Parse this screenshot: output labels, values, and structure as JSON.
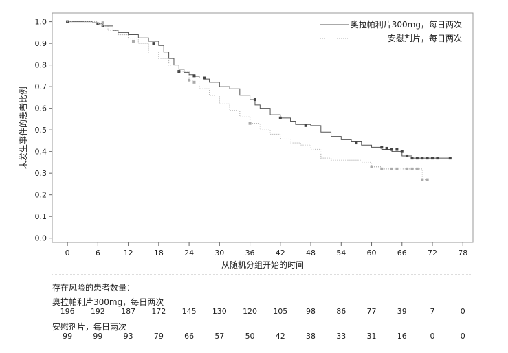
{
  "chart_data": {
    "type": "line",
    "title": "",
    "xlabel": "从随机分组开始的时间",
    "ylabel": "未发生事件的患者比例",
    "xlim": [
      -3,
      80
    ],
    "ylim": [
      -0.02,
      1.04
    ],
    "x_ticks": [
      0,
      6,
      12,
      18,
      24,
      30,
      36,
      42,
      48,
      54,
      60,
      66,
      72,
      78
    ],
    "y_ticks": [
      "0.0",
      "0.1",
      "0.2",
      "0.3",
      "0.4",
      "0.5",
      "0.6",
      "0.7",
      "0.8",
      "0.9",
      "1.0"
    ],
    "legend_position": "top-right",
    "series": [
      {
        "name": "奥拉帕利片300mg，每日两次",
        "color": "#555555",
        "style": "solid",
        "x": [
          0,
          5,
          6,
          7,
          9,
          10,
          12,
          14,
          16,
          18,
          19,
          20,
          21,
          22,
          23,
          24,
          25,
          26,
          27,
          28,
          30,
          32,
          34,
          36,
          37,
          38,
          40,
          42,
          44,
          45,
          46,
          48,
          50,
          52,
          54,
          56,
          58,
          60,
          62,
          64,
          66,
          68,
          70,
          72,
          74,
          75.5
        ],
        "y": [
          1.0,
          0.995,
          0.99,
          0.98,
          0.96,
          0.95,
          0.94,
          0.925,
          0.91,
          0.89,
          0.86,
          0.83,
          0.8,
          0.78,
          0.765,
          0.755,
          0.748,
          0.74,
          0.735,
          0.72,
          0.7,
          0.69,
          0.66,
          0.64,
          0.615,
          0.6,
          0.57,
          0.555,
          0.54,
          0.525,
          0.525,
          0.52,
          0.49,
          0.47,
          0.455,
          0.445,
          0.43,
          0.42,
          0.41,
          0.4,
          0.38,
          0.37,
          0.37,
          0.37,
          0.37,
          0.37
        ],
        "censored": [
          [
            0,
            1.0
          ],
          [
            6,
            0.99
          ],
          [
            7,
            0.98
          ],
          [
            17,
            0.9
          ],
          [
            22,
            0.77
          ],
          [
            25,
            0.75
          ],
          [
            27,
            0.74
          ],
          [
            37,
            0.64
          ],
          [
            42,
            0.555
          ],
          [
            47,
            0.52
          ],
          [
            57,
            0.44
          ],
          [
            62,
            0.42
          ],
          [
            63,
            0.415
          ],
          [
            64,
            0.41
          ],
          [
            65,
            0.41
          ],
          [
            66,
            0.4
          ],
          [
            67,
            0.38
          ],
          [
            68,
            0.37
          ],
          [
            69,
            0.37
          ],
          [
            70,
            0.37
          ],
          [
            71,
            0.37
          ],
          [
            72,
            0.37
          ],
          [
            73,
            0.37
          ],
          [
            75.5,
            0.37
          ]
        ]
      },
      {
        "name": "安慰剂片，每日两次",
        "color": "#b0b0b0",
        "style": "dotted",
        "x": [
          0,
          6,
          7,
          8,
          10,
          12,
          14,
          16,
          18,
          20,
          22,
          24,
          26,
          28,
          30,
          32,
          34,
          36,
          38,
          40,
          42,
          44,
          46,
          48,
          50,
          52,
          54,
          56,
          58,
          60,
          62,
          64,
          66,
          68,
          70,
          71
        ],
        "y": [
          1.0,
          0.99,
          0.98,
          0.96,
          0.94,
          0.92,
          0.9,
          0.86,
          0.83,
          0.8,
          0.77,
          0.73,
          0.69,
          0.66,
          0.62,
          0.59,
          0.56,
          0.53,
          0.5,
          0.48,
          0.46,
          0.44,
          0.43,
          0.41,
          0.37,
          0.36,
          0.36,
          0.36,
          0.35,
          0.33,
          0.32,
          0.32,
          0.32,
          0.32,
          0.27,
          0.27
        ],
        "censored": [
          [
            7,
            0.995
          ],
          [
            13,
            0.91
          ],
          [
            24,
            0.73
          ],
          [
            25,
            0.72
          ],
          [
            36,
            0.53
          ],
          [
            60,
            0.33
          ],
          [
            62,
            0.32
          ],
          [
            64,
            0.32
          ],
          [
            65,
            0.32
          ],
          [
            67,
            0.32
          ],
          [
            68,
            0.32
          ],
          [
            69,
            0.32
          ],
          [
            70,
            0.27
          ],
          [
            71,
            0.27
          ]
        ]
      }
    ]
  },
  "risk_table": {
    "title": "存在风险的患者数量：",
    "groups": [
      {
        "label": "奥拉帕利片300mg，每日两次",
        "counts": [
          "196",
          "192",
          "187",
          "172",
          "145",
          "130",
          "120",
          "105",
          "98",
          "86",
          "77",
          "39",
          "7",
          "0"
        ]
      },
      {
        "label": "安慰剂片，每日两次",
        "counts": [
          "99",
          "99",
          "93",
          "79",
          "66",
          "57",
          "50",
          "42",
          "38",
          "33",
          "31",
          "16",
          "0",
          "0"
        ]
      }
    ]
  }
}
